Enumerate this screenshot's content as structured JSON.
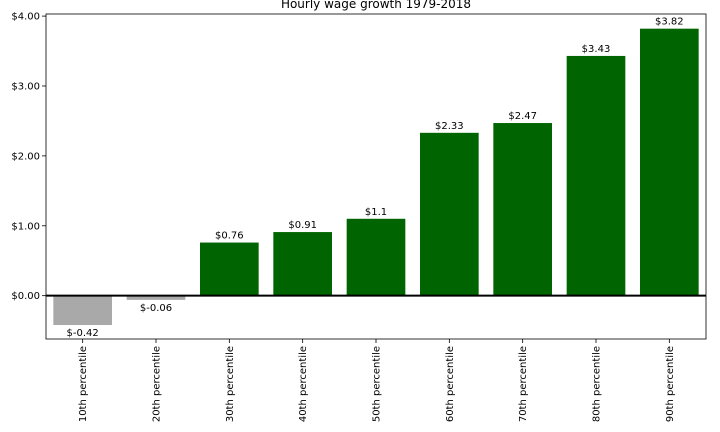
{
  "chart_data": {
    "type": "bar",
    "title": "Hourly wage growth 1979-2018",
    "xlabel": "",
    "ylabel": "",
    "categories": [
      "10th percentile",
      "20th percentile",
      "30th percentile",
      "40th percentile",
      "50th percentile",
      "60th percentile",
      "70th percentile",
      "80th percentile",
      "90th percentile"
    ],
    "values": [
      -0.42,
      -0.06,
      0.76,
      0.91,
      1.1,
      2.33,
      2.47,
      3.43,
      3.82
    ],
    "value_labels": [
      "$-0.42",
      "$-0.06",
      "$0.76",
      "$0.91",
      "$1.1",
      "$2.33",
      "$2.47",
      "$3.43",
      "$3.82"
    ],
    "ylim": [
      -0.62,
      4.03
    ],
    "yticks": [
      0,
      1,
      2,
      3,
      4
    ],
    "ytick_labels": [
      "$0.00",
      "$1.00",
      "$2.00",
      "$3.00",
      "$4.00"
    ],
    "colors": {
      "negative": "#a9a9a9",
      "positive": "#006400",
      "zero_line": "#000000"
    },
    "grid": false,
    "legend": "none"
  }
}
